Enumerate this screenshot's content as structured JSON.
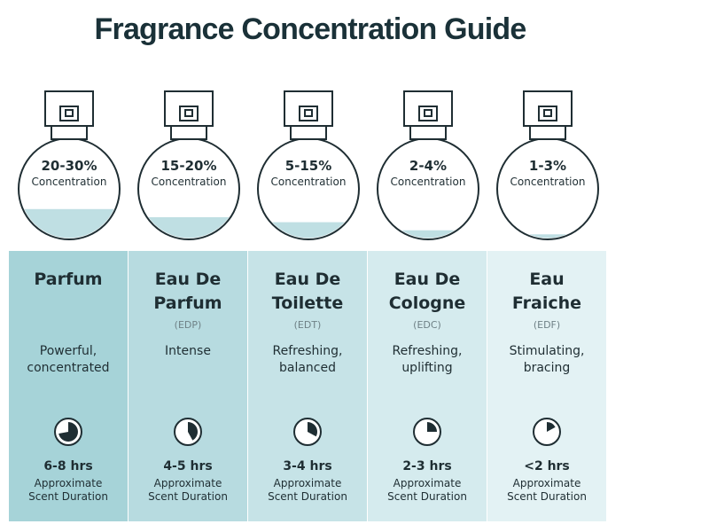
{
  "title": "Fragrance Concentration Guide",
  "colors": {
    "title": "#1a3138",
    "liquid": "#bfdfe3",
    "outline": "#1f2e33",
    "panels": [
      "#a6d3d8",
      "#b7dbe0",
      "#c6e3e7",
      "#d5ebee",
      "#e3f2f4"
    ]
  },
  "fragrances": [
    {
      "concentration": "20-30%",
      "concentration_label": "Concentration",
      "fill_level": 0.3,
      "name_line1": "Parfum",
      "name_line2": "",
      "abbreviation": "",
      "description_line1": "Powerful,",
      "description_line2": "concentrated",
      "duration": "6-8 hrs",
      "duration_fraction": 0.72,
      "duration_label_line1": "Approximate",
      "duration_label_line2": "Scent Duration"
    },
    {
      "concentration": "15-20%",
      "concentration_label": "Concentration",
      "fill_level": 0.22,
      "name_line1": "Eau De",
      "name_line2": "Parfum",
      "abbreviation": "(EDP)",
      "description_line1": "Intense",
      "description_line2": "",
      "duration": "4-5 hrs",
      "duration_fraction": 0.42,
      "duration_label_line1": "Approximate",
      "duration_label_line2": "Scent Duration"
    },
    {
      "concentration": "5-15%",
      "concentration_label": "Concentration",
      "fill_level": 0.17,
      "name_line1": "Eau De",
      "name_line2": "Toilette",
      "abbreviation": "(EDT)",
      "description_line1": "Refreshing,",
      "description_line2": "balanced",
      "duration": "3-4 hrs",
      "duration_fraction": 0.33,
      "duration_label_line1": "Approximate",
      "duration_label_line2": "Scent Duration"
    },
    {
      "concentration": "2-4%",
      "concentration_label": "Concentration",
      "fill_level": 0.09,
      "name_line1": "Eau De",
      "name_line2": "Cologne",
      "abbreviation": "(EDC)",
      "description_line1": "Refreshing,",
      "description_line2": "uplifting",
      "duration": "2-3 hrs",
      "duration_fraction": 0.25,
      "duration_label_line1": "Approximate",
      "duration_label_line2": "Scent Duration"
    },
    {
      "concentration": "1-3%",
      "concentration_label": "Concentration",
      "fill_level": 0.05,
      "name_line1": "Eau",
      "name_line2": "Fraiche",
      "abbreviation": "(EDF)",
      "description_line1": "Stimulating,",
      "description_line2": "bracing",
      "duration": "<2 hrs",
      "duration_fraction": 0.17,
      "duration_label_line1": "Approximate",
      "duration_label_line2": "Scent Duration"
    }
  ]
}
